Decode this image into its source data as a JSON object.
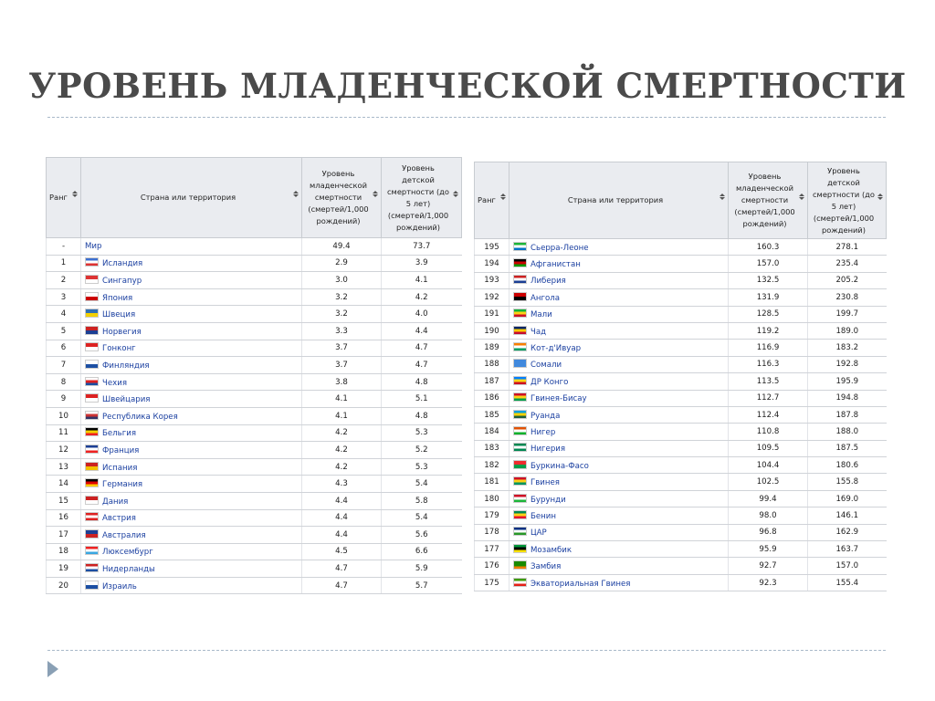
{
  "title": "УРОВЕНЬ МЛАДЕНЧЕСКОЙ СМЕРТНОСТИ",
  "tables": [
    {
      "headers": [
        "Ранг",
        "Страна или территория",
        "Уровень младенческой смертности (смертей/1,000 рождений)",
        "Уровень детской смертности (до 5 лет) (смертей/1,000 рождений)"
      ],
      "rows": [
        [
          "-",
          "Мир",
          "49.4",
          "73.7"
        ],
        [
          "1",
          "Исландия",
          "2.9",
          "3.9"
        ],
        [
          "2",
          "Сингапур",
          "3.0",
          "4.1"
        ],
        [
          "3",
          "Япония",
          "3.2",
          "4.2"
        ],
        [
          "4",
          "Швеция",
          "3.2",
          "4.0"
        ],
        [
          "5",
          "Норвегия",
          "3.3",
          "4.4"
        ],
        [
          "6",
          "Гонконг",
          "3.7",
          "4.7"
        ],
        [
          "7",
          "Финляндия",
          "3.7",
          "4.7"
        ],
        [
          "8",
          "Чехия",
          "3.8",
          "4.8"
        ],
        [
          "9",
          "Швейцария",
          "4.1",
          "5.1"
        ],
        [
          "10",
          "Республика Корея",
          "4.1",
          "4.8"
        ],
        [
          "11",
          "Бельгия",
          "4.2",
          "5.3"
        ],
        [
          "12",
          "Франция",
          "4.2",
          "5.2"
        ],
        [
          "13",
          "Испания",
          "4.2",
          "5.3"
        ],
        [
          "14",
          "Германия",
          "4.3",
          "5.4"
        ],
        [
          "15",
          "Дания",
          "4.4",
          "5.8"
        ],
        [
          "16",
          "Австрия",
          "4.4",
          "5.4"
        ],
        [
          "17",
          "Австралия",
          "4.4",
          "5.6"
        ],
        [
          "18",
          "Люксембург",
          "4.5",
          "6.6"
        ],
        [
          "19",
          "Нидерланды",
          "4.7",
          "5.9"
        ],
        [
          "20",
          "Израиль",
          "4.7",
          "5.7"
        ]
      ]
    },
    {
      "headers": [
        "Ранг",
        "Страна или территория",
        "Уровень младенческой смертности (смертей/1,000 рождений)",
        "Уровень детской смертности (до 5 лет) (смертей/1,000 рождений)"
      ],
      "rows": [
        [
          "195",
          "Сьерра-Леоне",
          "160.3",
          "278.1"
        ],
        [
          "194",
          "Афганистан",
          "157.0",
          "235.4"
        ],
        [
          "193",
          "Либерия",
          "132.5",
          "205.2"
        ],
        [
          "192",
          "Ангола",
          "131.9",
          "230.8"
        ],
        [
          "191",
          "Мали",
          "128.5",
          "199.7"
        ],
        [
          "190",
          "Чад",
          "119.2",
          "189.0"
        ],
        [
          "189",
          "Кот-д'Ивуар",
          "116.9",
          "183.2"
        ],
        [
          "188",
          "Сомали",
          "116.3",
          "192.8"
        ],
        [
          "187",
          "ДР Конго",
          "113.5",
          "195.9"
        ],
        [
          "186",
          "Гвинея-Бисау",
          "112.7",
          "194.8"
        ],
        [
          "185",
          "Руанда",
          "112.4",
          "187.8"
        ],
        [
          "184",
          "Нигер",
          "110.8",
          "188.0"
        ],
        [
          "183",
          "Нигерия",
          "109.5",
          "187.5"
        ],
        [
          "182",
          "Буркина-Фасо",
          "104.4",
          "180.6"
        ],
        [
          "181",
          "Гвинея",
          "102.5",
          "155.8"
        ],
        [
          "180",
          "Бурунди",
          "99.4",
          "169.0"
        ],
        [
          "179",
          "Бенин",
          "98.0",
          "146.1"
        ],
        [
          "178",
          "ЦАР",
          "96.8",
          "162.9"
        ],
        [
          "177",
          "Мозамбик",
          "95.9",
          "163.7"
        ],
        [
          "176",
          "Замбия",
          "92.7",
          "157.0"
        ],
        [
          "175",
          "Экваториальная Гвинея",
          "92.3",
          "155.4"
        ]
      ]
    }
  ]
}
